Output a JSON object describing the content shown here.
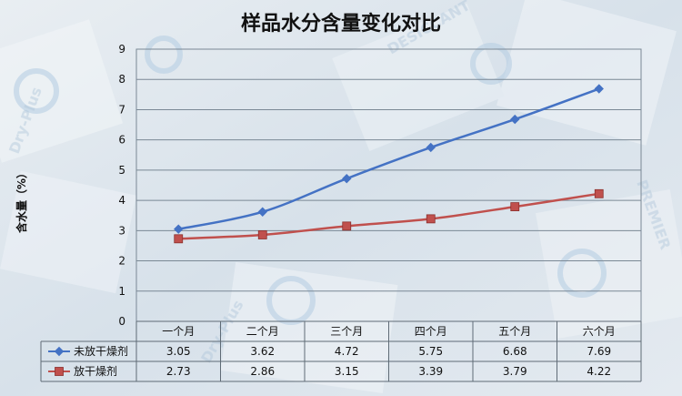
{
  "chart_data": {
    "type": "line",
    "title": "样品水分含量变化对比",
    "ylabel": "含水量（%）",
    "ylim": [
      0,
      9
    ],
    "yticks": [
      "0",
      "1",
      "2",
      "3",
      "4",
      "5",
      "6",
      "7",
      "8",
      "9"
    ],
    "categories": [
      "一个月",
      "二个月",
      "三个月",
      "四个月",
      "五个月",
      "六个月"
    ],
    "grid": true,
    "legend": "data-table",
    "series": [
      {
        "name": "未放干燥剂",
        "values": [
          3.05,
          3.62,
          4.72,
          5.75,
          6.68,
          7.69
        ],
        "labels": [
          "3.05",
          "3.62",
          "4.72",
          "5.75",
          "6.68",
          "7.69"
        ],
        "color": "#4472c4",
        "marker": "diamond"
      },
      {
        "name": "放干燥剂",
        "values": [
          2.73,
          2.86,
          3.15,
          3.39,
          3.79,
          4.22
        ],
        "labels": [
          "2.73",
          "2.86",
          "3.15",
          "3.39",
          "3.79",
          "4.22"
        ],
        "color": "#c0504d",
        "marker": "square"
      }
    ]
  }
}
